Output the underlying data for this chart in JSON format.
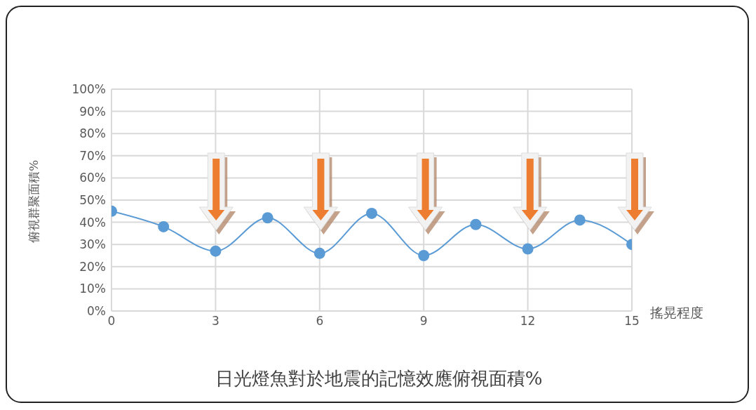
{
  "chart_data": {
    "type": "line",
    "title": "日光燈魚對於地震的記憶效應俯視面積%",
    "xlabel": "搖晃程度",
    "ylabel": "俯視群聚面積%",
    "x": [
      0,
      1.5,
      3,
      4.5,
      6,
      7.5,
      9,
      10.5,
      12,
      13.5,
      15
    ],
    "series": [
      {
        "color": "#5b9bd5",
        "values": [
          45,
          38,
          27,
          42,
          26,
          44,
          25,
          39,
          28,
          41,
          30
        ]
      }
    ],
    "xlim": [
      0,
      15
    ],
    "xticks": [
      0,
      3,
      6,
      9,
      12,
      15
    ],
    "ylim": [
      0,
      100
    ],
    "yticks": [
      {
        "value": 0,
        "label": "0%"
      },
      {
        "value": 10,
        "label": "10%"
      },
      {
        "value": 20,
        "label": "20%"
      },
      {
        "value": 30,
        "label": "30%"
      },
      {
        "value": 40,
        "label": "40%"
      },
      {
        "value": 50,
        "label": "50%"
      },
      {
        "value": 60,
        "label": "60%"
      },
      {
        "value": 70,
        "label": "70%"
      },
      {
        "value": 80,
        "label": "80%"
      },
      {
        "value": 90,
        "label": "90%"
      },
      {
        "value": 100,
        "label": "100%"
      }
    ],
    "grid": true,
    "marker": "circle",
    "line_style": "solid"
  }
}
